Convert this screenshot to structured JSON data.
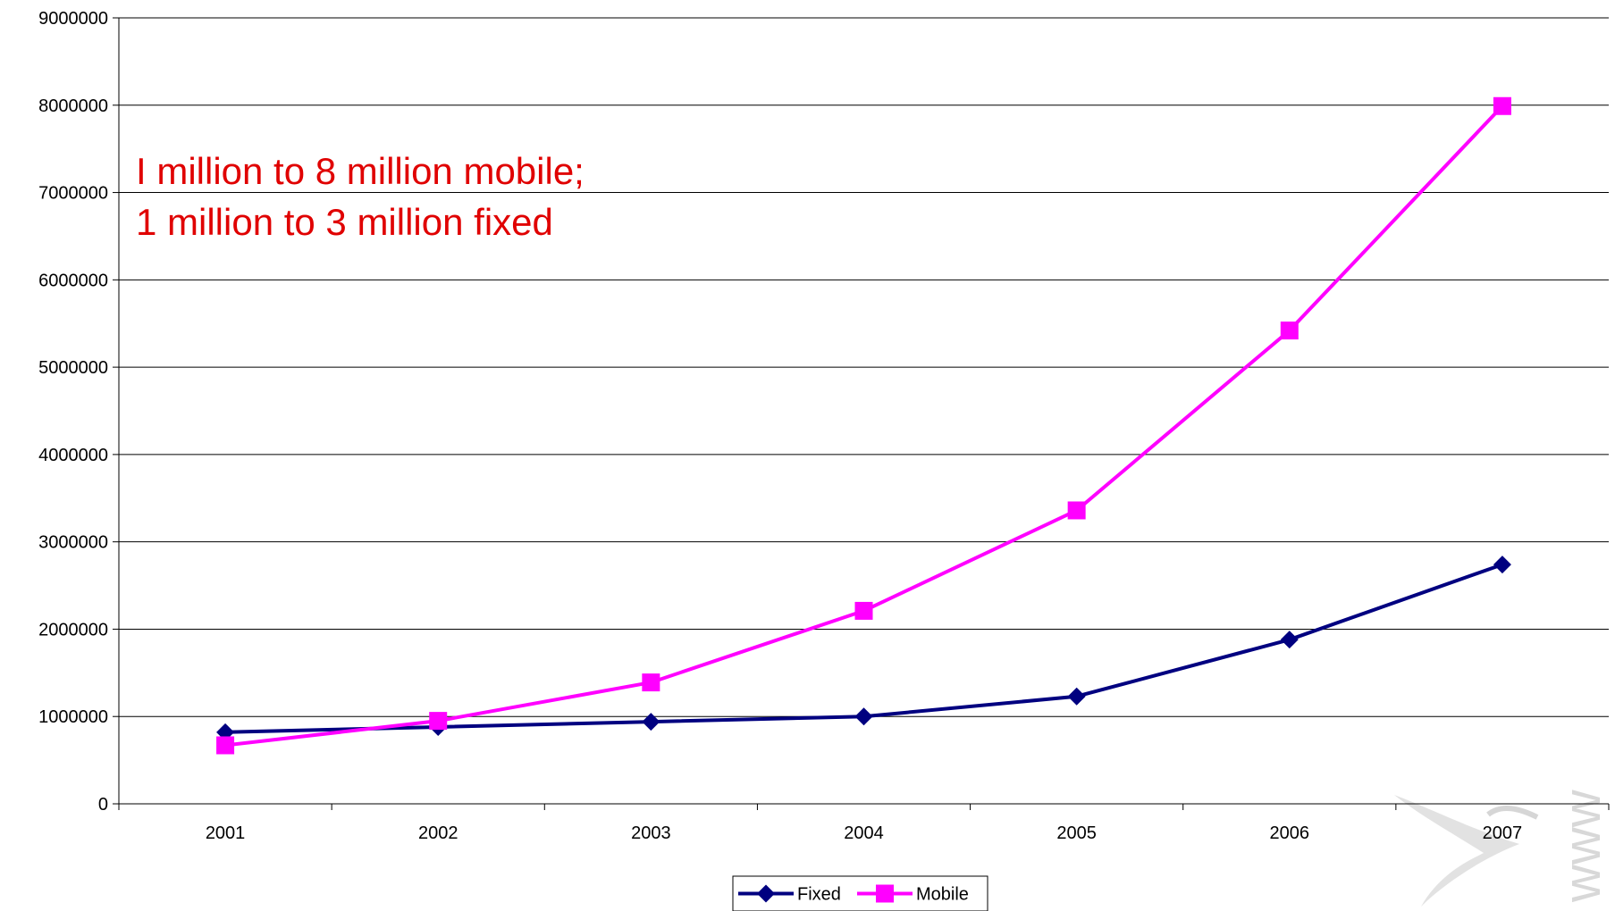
{
  "chart_data": {
    "type": "line",
    "categories": [
      "2001",
      "2002",
      "2003",
      "2004",
      "2005",
      "2006",
      "2007"
    ],
    "ylim": [
      0,
      9000000
    ],
    "yticks": [
      "0",
      "1000000",
      "2000000",
      "3000000",
      "4000000",
      "5000000",
      "6000000",
      "7000000",
      "8000000",
      "9000000"
    ],
    "grid": "horizontal",
    "legend_position": "bottom",
    "series": [
      {
        "name": "Fixed",
        "color": "#000080",
        "marker": "diamond",
        "values": [
          820000,
          880000,
          940000,
          1000000,
          1230000,
          1880000,
          2740000
        ]
      },
      {
        "name": "Mobile",
        "color": "#ff00ff",
        "marker": "square",
        "values": [
          670000,
          950000,
          1390000,
          2210000,
          3360000,
          5420000,
          7990000
        ]
      }
    ],
    "annotation": [
      "I million to 8 million mobile;",
      "1 million to 3 million fixed"
    ]
  }
}
